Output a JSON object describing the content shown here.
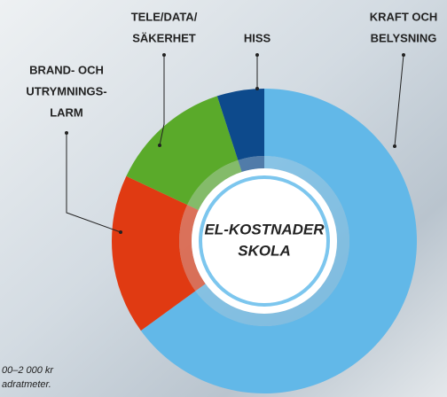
{
  "chart_data": {
    "type": "donut",
    "title": [
      "EL-KOSTNADER",
      "SKOLA"
    ],
    "categories": [
      [
        "KRAFT OCH",
        "BELYSNING"
      ],
      [
        "BRAND- OCH",
        "UTRYMNINGS-",
        "LARM"
      ],
      [
        "TELE/DATA/",
        "SÄKERHET"
      ],
      [
        "HISS"
      ]
    ],
    "values": [
      65,
      17,
      13,
      5
    ],
    "colors": [
      "#62b8e8",
      "#e03a12",
      "#5aaa2a",
      "#0d4a8c"
    ],
    "annotation": [
      "00–2 000 kr",
      "adratmeter."
    ]
  }
}
